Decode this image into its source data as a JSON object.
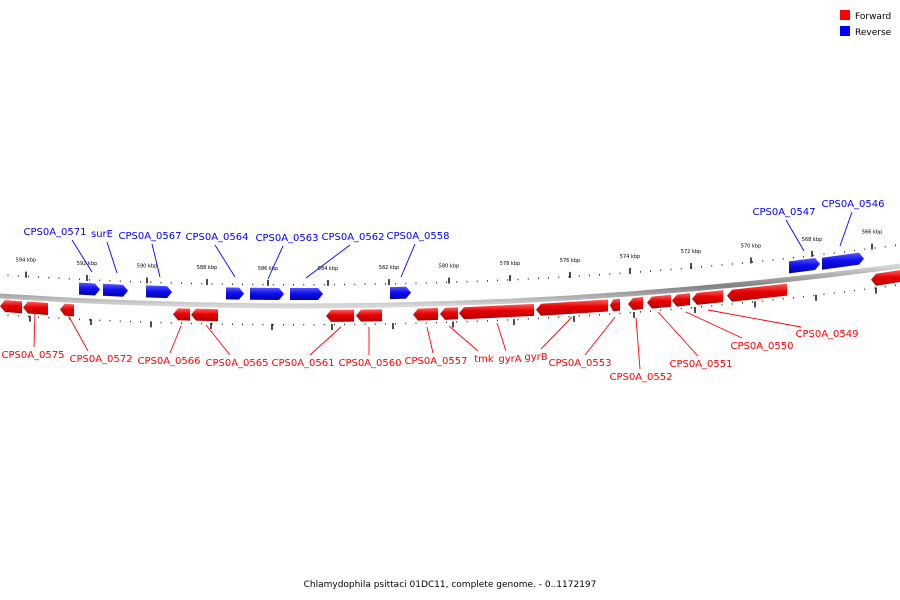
{
  "legend": [
    {
      "label": "Forward",
      "color": "#ff0000"
    },
    {
      "label": "Reverse",
      "color": "#0000ff"
    }
  ],
  "caption": "Chlamydophila psittaci 01DC11, complete genome. - 0..1172197",
  "colors": {
    "forward": "#ff0000",
    "reverse": "#0000ff",
    "backbone": "#888888"
  },
  "scale_labels": [
    "594 kbp",
    "592 kbp",
    "590 kbp",
    "588 kbp",
    "586 kbp",
    "584 kbp",
    "582 kbp",
    "580 kbp",
    "578 kbp",
    "576 kbp",
    "574 kbp",
    "572 kbp",
    "570 kbp",
    "568 kbp",
    "566 kbp"
  ],
  "reverse_genes": [
    "CPS0A_0571",
    "surE",
    "CPS0A_0567",
    "CPS0A_0564",
    "CPS0A_0563",
    "CPS0A_0562",
    "CPS0A_0558",
    "CPS0A_0547",
    "CPS0A_0546"
  ],
  "forward_genes": [
    "CPS0A_0575",
    "CPS0A_0572",
    "CPS0A_0566",
    "CPS0A_0565",
    "CPS0A_0561",
    "CPS0A_0560",
    "CPS0A_0557",
    "tmk",
    "gyrA",
    "gyrB",
    "CPS0A_0553",
    "CPS0A_0552",
    "CPS0A_0551",
    "CPS0A_0550",
    "CPS0A_0549"
  ]
}
